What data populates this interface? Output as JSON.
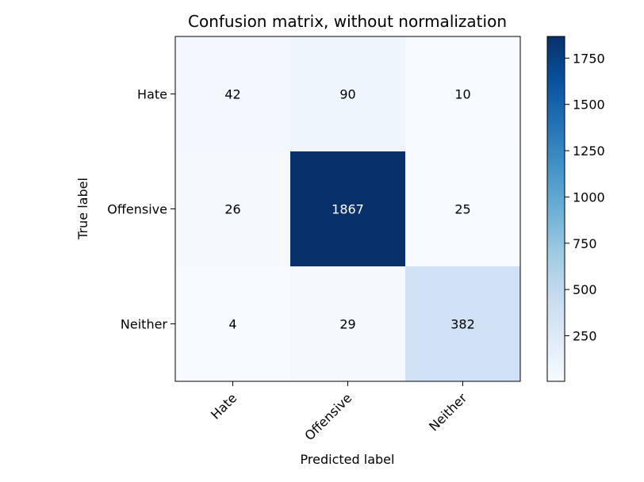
{
  "chart_data": {
    "type": "heatmap",
    "title": "Confusion matrix, without normalization",
    "xlabel": "Predicted label",
    "ylabel": "True label",
    "x_categories": [
      "Hate",
      "Offensive",
      "Neither"
    ],
    "y_categories": [
      "Hate",
      "Offensive",
      "Neither"
    ],
    "values": [
      [
        42,
        90,
        10
      ],
      [
        26,
        1867,
        25
      ],
      [
        4,
        29,
        382
      ]
    ],
    "colormap": "Blues",
    "colormap_stops": [
      "#f7fbff",
      "#deebf7",
      "#c6dbef",
      "#9ecae1",
      "#6baed6",
      "#4292c6",
      "#2171b5",
      "#08519c",
      "#08306b"
    ],
    "color_range": [
      4,
      1867
    ],
    "colorbar_ticks": [
      250,
      500,
      750,
      1000,
      1250,
      1500,
      1750
    ],
    "colorbar_tick_labels": [
      "250",
      "500",
      "750",
      "1000",
      "1250",
      "1500",
      "1750"
    ],
    "text_color_dark": "#000000",
    "text_color_light": "#ffffff",
    "grid": false,
    "colorbar_position": "right"
  }
}
